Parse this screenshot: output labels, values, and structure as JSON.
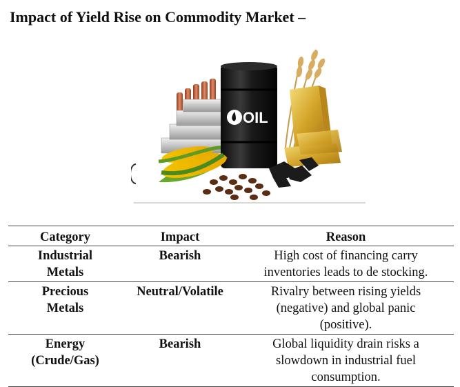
{
  "heading": "Impact of Yield Rise on Commodity Market –",
  "illustration": {
    "barrel_label": "OIL",
    "icons": [
      "copper-bars-icon",
      "silver-bars-icon",
      "oil-barrel-icon",
      "gold-bars-icon",
      "wheat-icon",
      "corn-icon",
      "coffee-beans-icon",
      "coal-icon"
    ]
  },
  "table": {
    "headers": {
      "category": "Category",
      "impact": "Impact",
      "reason": "Reason"
    },
    "rows": [
      {
        "category": [
          "Industrial",
          "Metals"
        ],
        "impact": "Bearish",
        "reason": [
          "High cost of financing carry",
          "inventories leads to de stocking."
        ]
      },
      {
        "category": [
          "Precious",
          "Metals"
        ],
        "impact": "Neutral/Volatile",
        "reason": [
          "Rivalry between rising yields",
          "(negative) and global panic",
          "(positive)."
        ]
      },
      {
        "category": [
          "Energy",
          "(Crude/Gas)"
        ],
        "impact": "Bearish",
        "reason": [
          "Global liquidity drain risks a",
          "slowdown in industrial fuel",
          "consumption."
        ]
      }
    ]
  }
}
